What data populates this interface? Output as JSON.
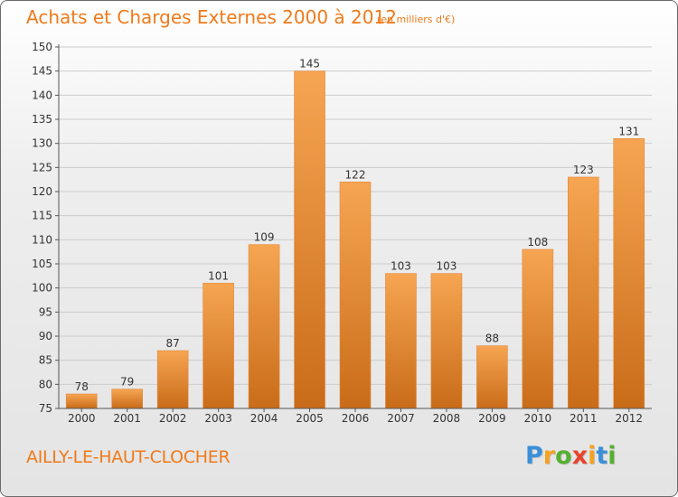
{
  "header": {
    "title": "Achats et Charges Externes 2000 à 2012",
    "unit_note": "(en milliers d'€)"
  },
  "footer": {
    "place": "AILLY-LE-HAUT-CLOCHER",
    "brand_letters": [
      {
        "char": "P",
        "color": "#3a8fd8"
      },
      {
        "char": "r",
        "color": "#f4a321"
      },
      {
        "char": "o",
        "color": "#55b030"
      },
      {
        "char": "x",
        "color": "#e8442a"
      },
      {
        "char": "i",
        "color": "#f4a321"
      },
      {
        "char": "t",
        "color": "#3a8fd8"
      },
      {
        "char": "i",
        "color": "#55b030"
      }
    ]
  },
  "colors": {
    "title": "#f07a1a",
    "bar_top": "#f6a552",
    "bar_bottom": "#c96c19",
    "grid": "#cccccc",
    "text": "#333333"
  },
  "chart_data": {
    "type": "bar",
    "categories": [
      "2000",
      "2001",
      "2002",
      "2003",
      "2004",
      "2005",
      "2006",
      "2007",
      "2008",
      "2009",
      "2010",
      "2011",
      "2012"
    ],
    "values": [
      78,
      79,
      87,
      101,
      109,
      145,
      122,
      103,
      103,
      88,
      108,
      123,
      131
    ],
    "ylim": [
      75,
      150
    ],
    "yticks": [
      75,
      80,
      85,
      90,
      95,
      100,
      105,
      110,
      115,
      120,
      125,
      130,
      135,
      140,
      145,
      150
    ],
    "grid": true,
    "xlabel": "",
    "ylabel": ""
  }
}
